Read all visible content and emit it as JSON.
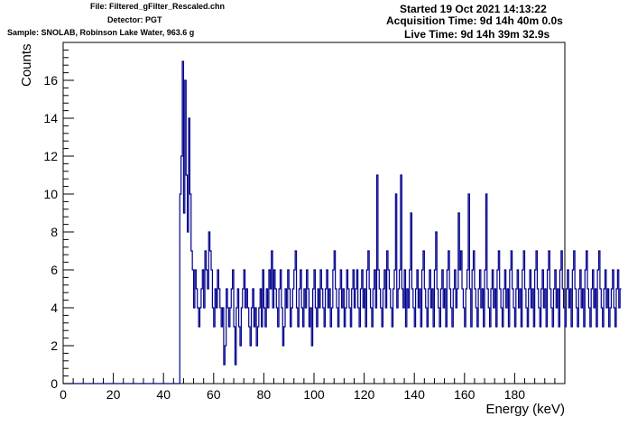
{
  "header": {
    "file": "File: Filtered_gFilter_Rescaled.chn",
    "detector": "Detector: PGT",
    "sample": "Sample: SNOLAB, Robinson Lake Water, 963.6 g",
    "started": "Started 19 Oct 2021 14:13:22",
    "acquisition": "Acquisition Time: 9d 14h 40m 0.0s",
    "live": "Live Time: 9d 14h 39m 32.9s"
  },
  "colors": {
    "histogram": "#00008b",
    "axes": "#000000"
  },
  "chart_data": {
    "type": "line",
    "style": "step-histogram",
    "title": "",
    "xlabel": "Energy (keV)",
    "ylabel": "Counts",
    "xlim": [
      0,
      200
    ],
    "ylim": [
      0,
      18
    ],
    "grid": false,
    "legend": "none",
    "xticks": [
      0,
      20,
      40,
      60,
      80,
      100,
      120,
      140,
      160,
      180
    ],
    "yticks": [
      0,
      2,
      4,
      6,
      8,
      10,
      12,
      14,
      16
    ],
    "bin_width": 0.5,
    "x_start": 0,
    "series": [
      {
        "values": [
          0,
          0,
          0,
          0,
          0,
          0,
          0,
          0,
          0,
          0,
          0,
          0,
          0,
          0,
          0,
          0,
          0,
          0,
          0,
          0,
          0,
          0,
          0,
          0,
          0,
          0,
          0,
          0,
          0,
          0,
          0,
          0,
          0,
          0,
          0,
          0,
          0,
          0,
          0,
          0,
          0,
          0,
          0,
          0,
          0,
          0,
          0,
          0,
          0,
          0,
          0,
          0,
          0,
          0,
          0,
          0,
          0,
          0,
          0,
          0,
          0,
          0,
          0,
          0,
          0,
          0,
          0,
          0,
          0,
          0,
          0,
          0,
          0,
          0,
          0,
          0,
          0,
          0,
          0,
          0,
          0,
          0,
          0,
          0,
          0,
          0,
          0,
          0,
          0,
          0,
          0,
          0,
          0,
          10,
          12,
          17,
          9,
          16,
          11,
          8,
          14,
          10,
          7,
          6,
          4,
          6,
          5,
          4,
          3,
          4,
          5,
          6,
          4,
          7,
          6,
          5,
          8,
          7,
          6,
          4,
          3,
          5,
          4,
          6,
          5,
          4,
          3,
          4,
          1,
          2,
          5,
          4,
          3,
          4,
          5,
          6,
          3,
          1,
          4,
          5,
          3,
          2,
          4,
          5,
          6,
          4,
          5,
          4,
          3,
          2,
          4,
          5,
          3,
          4,
          2,
          3,
          4,
          5,
          3,
          6,
          4,
          3,
          5,
          4,
          6,
          5,
          7,
          4,
          6,
          5,
          4,
          3,
          5,
          6,
          4,
          2,
          3,
          5,
          4,
          6,
          5,
          3,
          4,
          5,
          6,
          7,
          4,
          3,
          5,
          6,
          4,
          3,
          5,
          4,
          6,
          5,
          3,
          4,
          2,
          5,
          6,
          4,
          3,
          5,
          4,
          6,
          5,
          4,
          3,
          5,
          6,
          4,
          5,
          3,
          4,
          6,
          7,
          5,
          4,
          3,
          5,
          6,
          4,
          5,
          3,
          4,
          6,
          5,
          4,
          3,
          5,
          6,
          4,
          5,
          6,
          4,
          3,
          5,
          6,
          4,
          5,
          3,
          6,
          7,
          5,
          4,
          3,
          5,
          6,
          4,
          11,
          6,
          5,
          4,
          3,
          5,
          6,
          4,
          7,
          6,
          5,
          4,
          3,
          5,
          6,
          10,
          4,
          5,
          6,
          11,
          5,
          4,
          6,
          3,
          5,
          4,
          6,
          9,
          5,
          4,
          3,
          5,
          6,
          4,
          5,
          3,
          6,
          7,
          5,
          4,
          3,
          5,
          6,
          4,
          5,
          3,
          6,
          8,
          5,
          4,
          3,
          5,
          6,
          4,
          5,
          3,
          6,
          7,
          5,
          4,
          3,
          5,
          6,
          4,
          5,
          9,
          6,
          7,
          5,
          4,
          3,
          5,
          6,
          10,
          5,
          3,
          6,
          7,
          5,
          4,
          3,
          5,
          6,
          4,
          5,
          3,
          6,
          10,
          5,
          4,
          3,
          5,
          6,
          4,
          5,
          3,
          6,
          7,
          5,
          4,
          3,
          5,
          6,
          4,
          5,
          3,
          6,
          7,
          5,
          4,
          3,
          5,
          6,
          4,
          5,
          3,
          6,
          7,
          5,
          4,
          3,
          5,
          6,
          4,
          5,
          3,
          6,
          7,
          5,
          4,
          3,
          5,
          6,
          4,
          5,
          3,
          6,
          7,
          5,
          4,
          3,
          5,
          6,
          4,
          5,
          3,
          6,
          7,
          5,
          4,
          3,
          5,
          6,
          4,
          5,
          3,
          6,
          7,
          5,
          4,
          3,
          5,
          6,
          4,
          5,
          3,
          6,
          7,
          5,
          4,
          3,
          5,
          6,
          4,
          5,
          3,
          6,
          7,
          5,
          4,
          3,
          5,
          6,
          4,
          5,
          3,
          4,
          5,
          6,
          4,
          3,
          5,
          6,
          4,
          5
        ]
      }
    ]
  }
}
